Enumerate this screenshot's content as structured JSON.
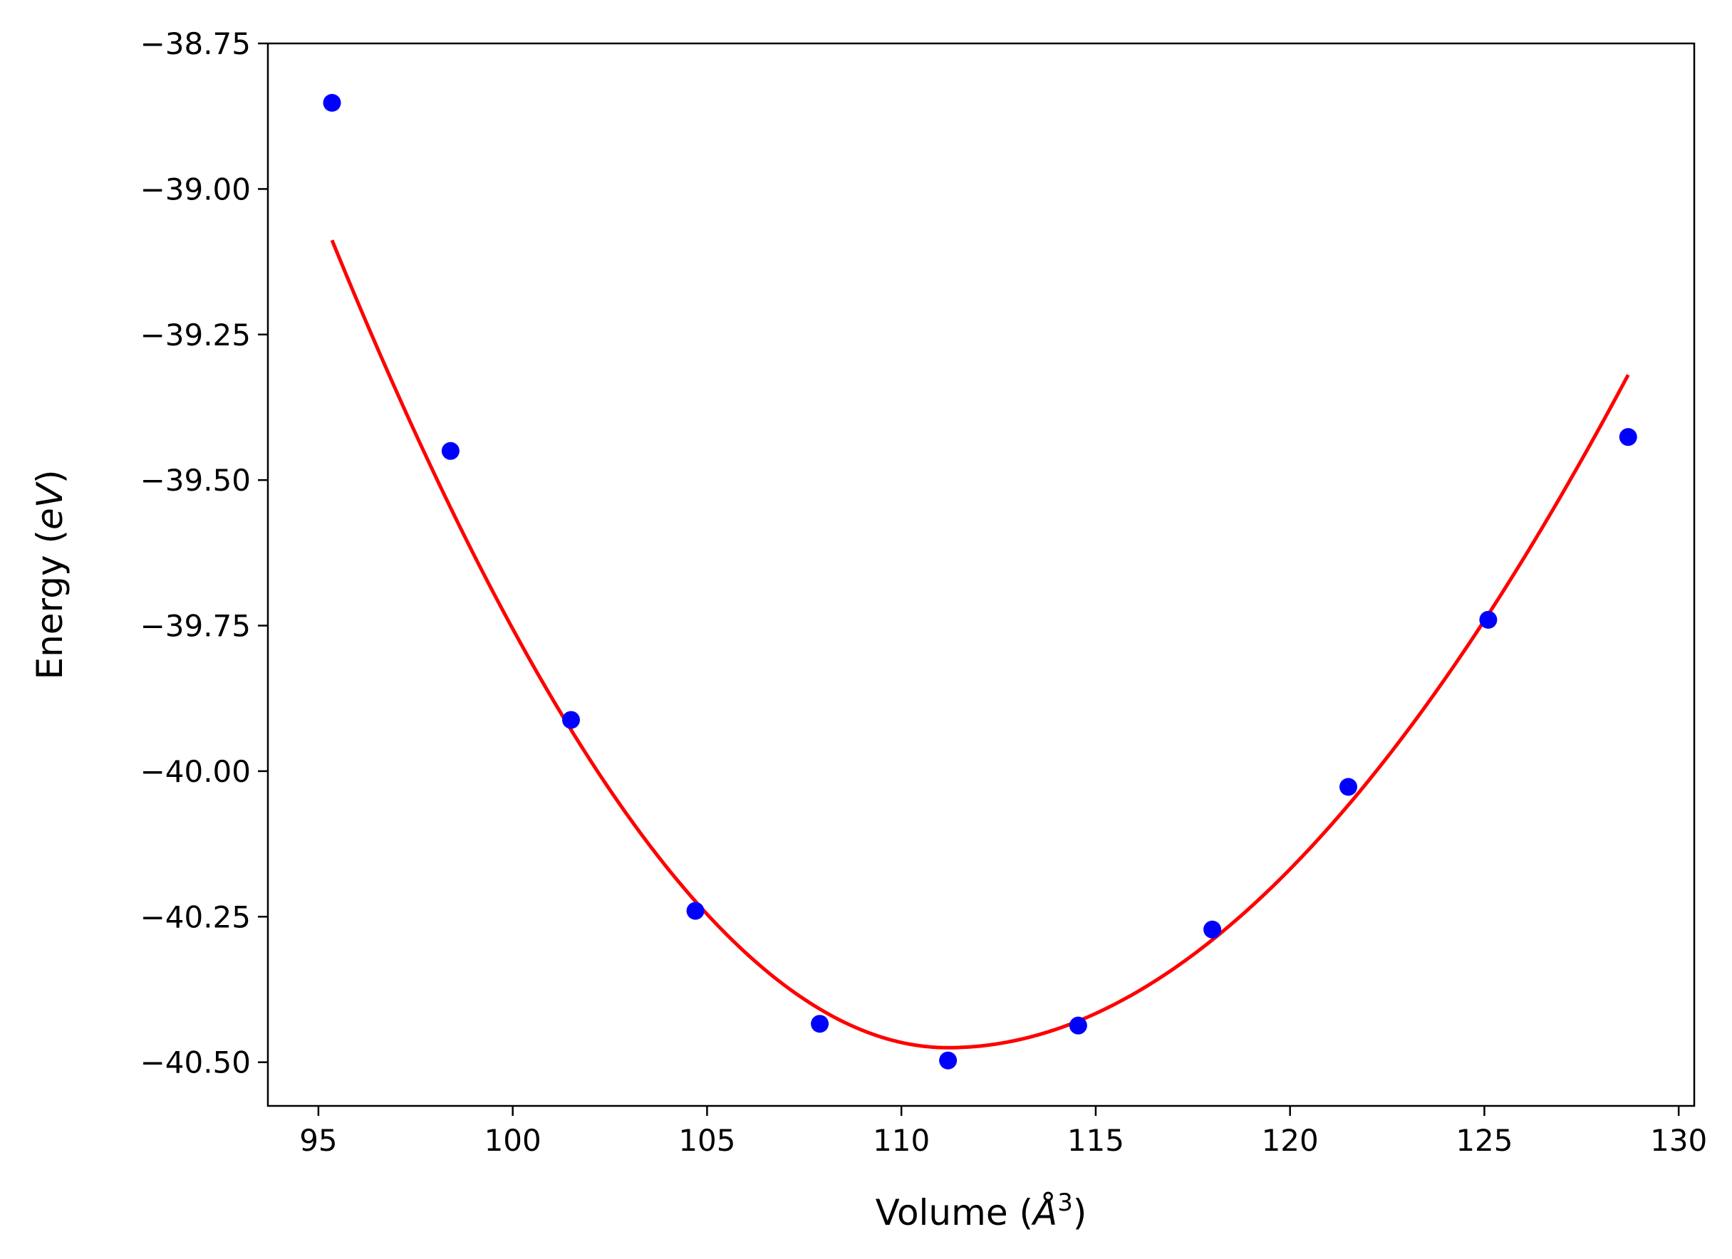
{
  "chart_data": {
    "type": "scatter",
    "title": "",
    "xlabel": {
      "text": "Volume (",
      "symbol": "Å",
      "superscript": "3",
      "close": ")"
    },
    "ylabel": {
      "text": "Energy (",
      "italic": "eV",
      "close": ")"
    },
    "xlim": [
      93.7,
      130.4
    ],
    "ylim": [
      -40.575,
      -38.75
    ],
    "xticks": [
      95,
      100,
      105,
      110,
      115,
      120,
      125,
      130
    ],
    "xtick_labels": [
      "95",
      "100",
      "105",
      "110",
      "115",
      "120",
      "125",
      "130"
    ],
    "yticks": [
      -38.75,
      -39.0,
      -39.25,
      -39.5,
      -39.75,
      -40.0,
      -40.25,
      -40.5
    ],
    "ytick_labels": [
      "−38.75",
      "−39.00",
      "−39.25",
      "−39.50",
      "−39.75",
      "−40.00",
      "−40.25",
      "−40.50"
    ],
    "grid": false,
    "series": [
      {
        "kind": "points",
        "color": "#0000ff",
        "x": [
          95.35,
          98.4,
          101.5,
          104.7,
          107.9,
          111.2,
          114.55,
          118.0,
          121.5,
          125.1,
          128.7
        ],
        "y": [
          -38.852,
          -39.45,
          -39.912,
          -40.24,
          -40.434,
          -40.497,
          -40.437,
          -40.272,
          -40.027,
          -39.74,
          -39.426
        ]
      },
      {
        "kind": "fit-curve",
        "color": "#ff0000",
        "x_range": [
          95.35,
          128.7
        ],
        "min_x": 111.2,
        "min_y": -40.475,
        "a_left": 0.00625,
        "b_left": 4.6e-05,
        "a_right": 0.00415,
        "b_right": -2.15e-05
      }
    ]
  }
}
